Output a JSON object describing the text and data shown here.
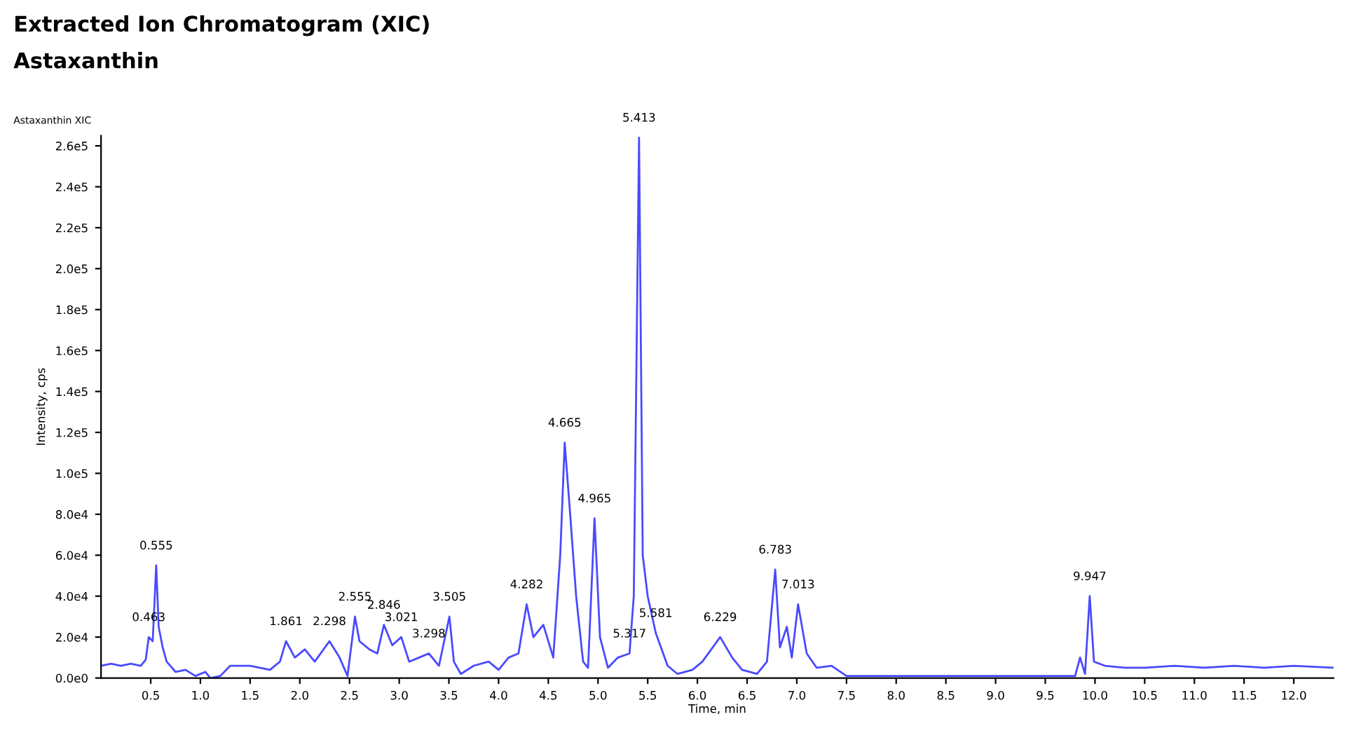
{
  "chart_data": {
    "type": "line",
    "title": "Extracted Ion Chromatogram (XIC)",
    "subtitle": "Astaxanthin",
    "xlabel": "Time, min",
    "ylabel": "Intensity, cps",
    "x": [
      0.0,
      0.1,
      0.2,
      0.3,
      0.4,
      0.45,
      0.48,
      0.52,
      0.555,
      0.58,
      0.62,
      0.66,
      0.75,
      0.85,
      0.95,
      1.05,
      1.1,
      1.2,
      1.3,
      1.5,
      1.7,
      1.8,
      1.861,
      1.95,
      2.05,
      2.15,
      2.298,
      2.4,
      2.48,
      2.555,
      2.6,
      2.7,
      2.78,
      2.846,
      2.93,
      3.021,
      3.1,
      3.2,
      3.298,
      3.4,
      3.505,
      3.55,
      3.62,
      3.75,
      3.9,
      4.0,
      4.1,
      4.2,
      4.282,
      4.35,
      4.45,
      4.55,
      4.62,
      4.665,
      4.72,
      4.78,
      4.85,
      4.9,
      4.965,
      5.02,
      5.1,
      5.2,
      5.317,
      5.36,
      5.413,
      5.45,
      5.5,
      5.581,
      5.7,
      5.8,
      5.95,
      6.05,
      6.229,
      6.35,
      6.45,
      6.6,
      6.7,
      6.783,
      6.83,
      6.9,
      6.95,
      7.013,
      7.1,
      7.2,
      7.35,
      7.5,
      7.6,
      8.5,
      9.5,
      9.8,
      9.85,
      9.9,
      9.947,
      9.99,
      10.1,
      10.3,
      10.5,
      10.8,
      11.1,
      11.4,
      11.7,
      12.0,
      12.4
    ],
    "series": [
      {
        "color": "#4a4aff",
        "values": [
          6000,
          7000,
          6000,
          7000,
          6000,
          9000,
          20000,
          18000,
          55000,
          25000,
          15000,
          8000,
          3000,
          4000,
          1000,
          3000,
          0,
          1000,
          6000,
          6000,
          4000,
          8000,
          18000,
          10000,
          14000,
          8000,
          18000,
          10000,
          1000,
          30000,
          18000,
          14000,
          12000,
          26000,
          16000,
          20000,
          8000,
          10000,
          12000,
          6000,
          30000,
          8000,
          2000,
          6000,
          8000,
          4000,
          10000,
          12000,
          36000,
          20000,
          26000,
          10000,
          60000,
          115000,
          80000,
          40000,
          8000,
          5000,
          78000,
          20000,
          5000,
          10000,
          12000,
          40000,
          264000,
          60000,
          40000,
          22000,
          6000,
          2000,
          4000,
          8000,
          20000,
          10000,
          4000,
          2000,
          8000,
          53000,
          15000,
          25000,
          10000,
          36000,
          12000,
          5000,
          6000,
          1000,
          1000,
          1000,
          1000,
          1000,
          10000,
          2000,
          40000,
          8000,
          6000,
          5000,
          5000,
          6000,
          5000,
          6000,
          5000,
          6000,
          5000
        ]
      }
    ],
    "xlim": [
      0,
      12.4
    ],
    "xticks": [
      {
        "value": 0.5,
        "label": "0.5"
      },
      {
        "value": 1,
        "label": "1.0"
      },
      {
        "value": 1.5,
        "label": "1.5"
      },
      {
        "value": 2,
        "label": "2.0"
      },
      {
        "value": 2.5,
        "label": "2.5"
      },
      {
        "value": 3,
        "label": "3.0"
      },
      {
        "value": 3.5,
        "label": "3.5"
      },
      {
        "value": 4,
        "label": "4.0"
      },
      {
        "value": 4.5,
        "label": "4.5"
      },
      {
        "value": 5,
        "label": "5.0"
      },
      {
        "value": 5.5,
        "label": "5.5"
      },
      {
        "value": 6,
        "label": "6.0"
      },
      {
        "value": 6.5,
        "label": "6.5"
      },
      {
        "value": 7,
        "label": "7.0"
      },
      {
        "value": 7.5,
        "label": "7.5"
      },
      {
        "value": 8,
        "label": "8.0"
      },
      {
        "value": 8.5,
        "label": "8.5"
      },
      {
        "value": 9,
        "label": "9.0"
      },
      {
        "value": 9.5,
        "label": "9.5"
      },
      {
        "value": 10,
        "label": "10.0"
      },
      {
        "value": 10.5,
        "label": "10.5"
      },
      {
        "value": 11,
        "label": "11.0"
      },
      {
        "value": 11.5,
        "label": "11.5"
      },
      {
        "value": 12,
        "label": "12.0"
      }
    ],
    "ylim": [
      0,
      265000
    ],
    "yticks": [
      {
        "value": 0,
        "label": "0.0e0"
      },
      {
        "value": 20000,
        "label": "2.0e4"
      },
      {
        "value": 40000,
        "label": "4.0e4"
      },
      {
        "value": 60000,
        "label": "6.0e4"
      },
      {
        "value": 80000,
        "label": "8.0e4"
      },
      {
        "value": 100000,
        "label": "1.0e5"
      },
      {
        "value": 120000,
        "label": "1.2e5"
      },
      {
        "value": 140000,
        "label": "1.4e5"
      },
      {
        "value": 160000,
        "label": "1.6e5"
      },
      {
        "value": 180000,
        "label": "1.8e5"
      },
      {
        "value": 200000,
        "label": "2.0e5"
      },
      {
        "value": 220000,
        "label": "2.2e5"
      },
      {
        "value": 240000,
        "label": "2.4e5"
      },
      {
        "value": 260000,
        "label": "2.6e5"
      }
    ],
    "grid": false,
    "marker": "none",
    "line_style": "solid",
    "annotations": [
      "Astaxanthin XIC",
      {
        "text": "0.463",
        "x": 0.48,
        "y": 20000
      },
      {
        "text": "0.555",
        "x": 0.555,
        "y": 55000
      },
      {
        "text": "1.861",
        "x": 1.861,
        "y": 18000
      },
      {
        "text": "2.298",
        "x": 2.298,
        "y": 18000
      },
      {
        "text": "2.555",
        "x": 2.555,
        "y": 30000
      },
      {
        "text": "2.846",
        "x": 2.846,
        "y": 26000
      },
      {
        "text": "3.021",
        "x": 3.021,
        "y": 20000
      },
      {
        "text": "3.298",
        "x": 3.298,
        "y": 12000
      },
      {
        "text": "3.505",
        "x": 3.505,
        "y": 30000
      },
      {
        "text": "4.282",
        "x": 4.282,
        "y": 36000
      },
      {
        "text": "4.665",
        "x": 4.665,
        "y": 115000
      },
      {
        "text": "4.965",
        "x": 4.965,
        "y": 78000
      },
      {
        "text": "5.317",
        "x": 5.317,
        "y": 12000
      },
      {
        "text": "5.413",
        "x": 5.413,
        "y": 264000
      },
      {
        "text": "5.581",
        "x": 5.581,
        "y": 22000
      },
      {
        "text": "6.229",
        "x": 6.229,
        "y": 20000
      },
      {
        "text": "6.783",
        "x": 6.783,
        "y": 53000
      },
      {
        "text": "7.013",
        "x": 7.013,
        "y": 36000
      },
      {
        "text": "9.947",
        "x": 9.947,
        "y": 40000
      }
    ]
  }
}
